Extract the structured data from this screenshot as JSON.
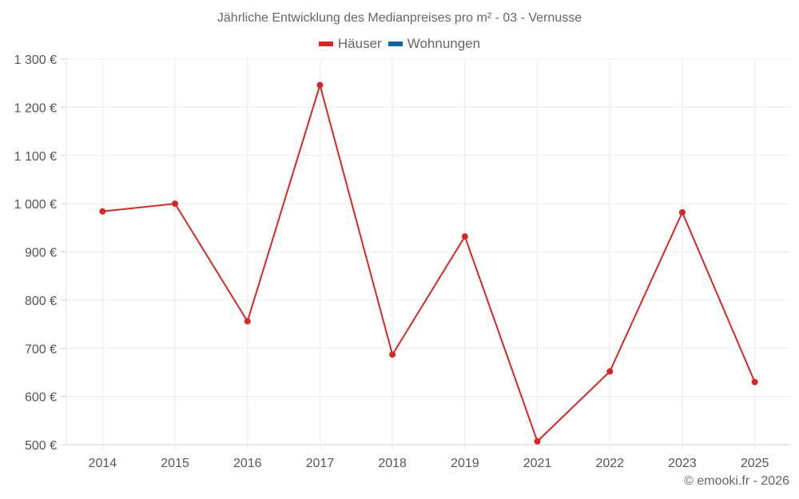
{
  "chart_data": {
    "type": "line",
    "title": "Jährliche Entwicklung des Medianpreises pro m² - 03 - Vernusse",
    "xlabel": "",
    "ylabel": "",
    "categories": [
      "2014",
      "2015",
      "2016",
      "2017",
      "2018",
      "2019",
      "2021",
      "2022",
      "2023",
      "2025"
    ],
    "series": [
      {
        "name": "Häuser",
        "color": "#d62728",
        "values": [
          984,
          1000,
          756,
          1246,
          687,
          932,
          507,
          652,
          982,
          630
        ]
      },
      {
        "name": "Wohnungen",
        "color": "#0b67a6",
        "values": []
      }
    ],
    "ylim": [
      500,
      1300
    ],
    "yticks": [
      500,
      600,
      700,
      800,
      900,
      1000,
      1100,
      1200,
      1300
    ],
    "ytick_labels": [
      "500 €",
      "600 €",
      "700 €",
      "800 €",
      "900 €",
      "1 000 €",
      "1 100 €",
      "1 200 €",
      "1 300 €"
    ],
    "grid": true,
    "legend_position": "top"
  },
  "legend": {
    "items": [
      {
        "label": "Häuser",
        "color": "#d62728"
      },
      {
        "label": "Wohnungen",
        "color": "#0b67a6"
      }
    ]
  },
  "credit": "© emooki.fr - 2026"
}
